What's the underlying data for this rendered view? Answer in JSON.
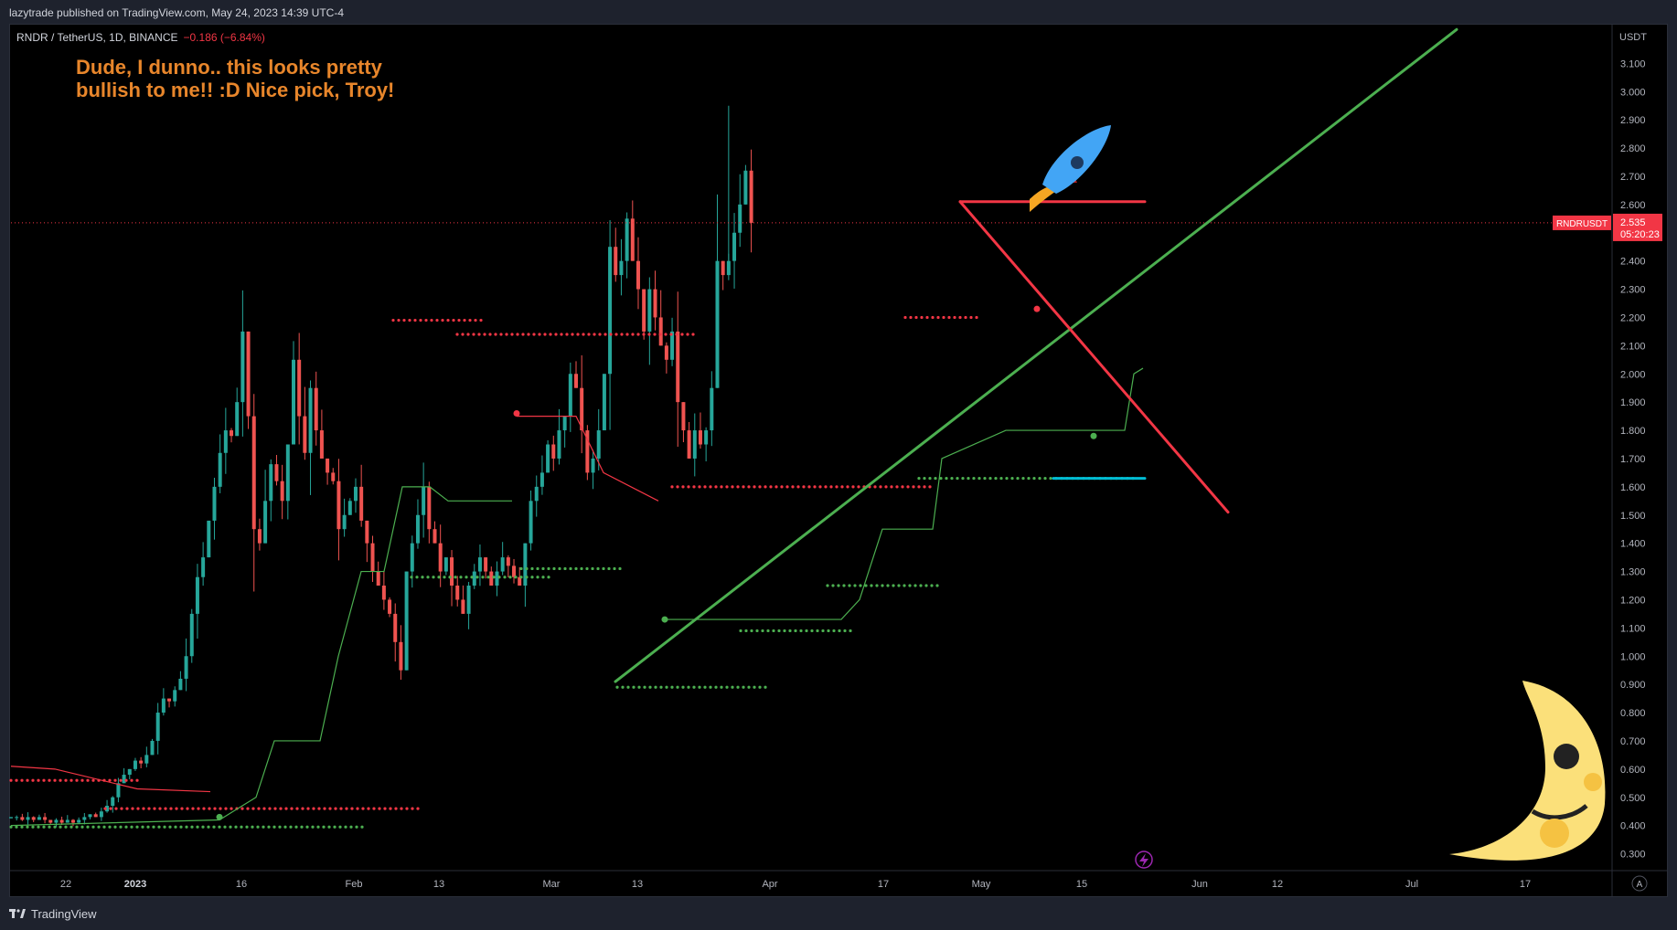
{
  "header": {
    "published_text": "lazytrade published on TradingView.com, May 24, 2023 14:39 UTC-4"
  },
  "legend": {
    "symbol_text": "RNDR / TetherUS, 1D, BINANCE",
    "change_text": "−0.186 (−6.84%)",
    "change_color": "#f23645"
  },
  "annotation": {
    "line1": "Dude, I dunno.. this looks pretty",
    "line2": "bullish to me!! :D  Nice pick, Troy!",
    "color": "#e8862b"
  },
  "price_axis": {
    "currency": "USDT",
    "ticks": [
      "3.100",
      "3.000",
      "2.900",
      "2.800",
      "2.700",
      "2.600",
      "2.400",
      "2.300",
      "2.200",
      "2.100",
      "2.000",
      "1.900",
      "1.800",
      "1.700",
      "1.600",
      "1.500",
      "1.400",
      "1.300",
      "1.200",
      "1.100",
      "1.000",
      "0.900",
      "0.800",
      "0.700",
      "0.600",
      "0.500",
      "0.400",
      "0.300"
    ],
    "tick_values": [
      3.1,
      3.0,
      2.9,
      2.8,
      2.7,
      2.6,
      2.4,
      2.3,
      2.2,
      2.1,
      2.0,
      1.9,
      1.8,
      1.7,
      1.6,
      1.5,
      1.4,
      1.3,
      1.2,
      1.1,
      1.0,
      0.9,
      0.8,
      0.7,
      0.6,
      0.5,
      0.4,
      0.3
    ],
    "last_price_label": "2.535",
    "countdown_label": "05:20:23",
    "symbol_badge": "RNDRUSDT",
    "badge_color": "#f23645"
  },
  "time_axis": {
    "labels": [
      {
        "text": "22",
        "bold": false
      },
      {
        "text": "2023",
        "bold": true
      },
      {
        "text": "16",
        "bold": false
      },
      {
        "text": "Feb",
        "bold": false
      },
      {
        "text": "13",
        "bold": false
      },
      {
        "text": "Mar",
        "bold": false
      },
      {
        "text": "13",
        "bold": false
      },
      {
        "text": "Apr",
        "bold": false
      },
      {
        "text": "17",
        "bold": false
      },
      {
        "text": "May",
        "bold": false
      },
      {
        "text": "15",
        "bold": false
      },
      {
        "text": "Jun",
        "bold": false
      },
      {
        "text": "12",
        "bold": false
      },
      {
        "text": "Jul",
        "bold": false
      },
      {
        "text": "17",
        "bold": false
      }
    ],
    "auto_button": "A"
  },
  "footer": {
    "brand": "TradingView"
  },
  "colors": {
    "up": "#26a69a",
    "down": "#ef5350",
    "trend_up": "#4caf50",
    "trend_down": "#f23645",
    "support": "#00bcd4",
    "background": "#000000"
  },
  "chart_data": {
    "type": "candlestick",
    "title": "RNDR / TetherUS, 1D, BINANCE",
    "last_price": 2.535,
    "change": -0.186,
    "change_pct": -6.84,
    "ylim": [
      0.25,
      3.2
    ],
    "close_path": [
      0.43,
      0.43,
      0.42,
      0.43,
      0.42,
      0.43,
      0.42,
      0.41,
      0.42,
      0.41,
      0.42,
      0.41,
      0.42,
      0.43,
      0.44,
      0.43,
      0.45,
      0.47,
      0.5,
      0.55,
      0.58,
      0.6,
      0.63,
      0.62,
      0.65,
      0.7,
      0.8,
      0.85,
      0.84,
      0.88,
      0.92,
      1.0,
      1.15,
      1.28,
      1.35,
      1.48,
      1.6,
      1.72,
      1.8,
      1.78,
      1.9,
      2.15,
      1.85,
      1.45,
      1.4,
      1.55,
      1.68,
      1.62,
      1.55,
      1.75,
      2.05,
      1.85,
      1.72,
      1.95,
      1.8,
      1.7,
      1.65,
      1.62,
      1.45,
      1.5,
      1.55,
      1.6,
      1.48,
      1.4,
      1.3,
      1.25,
      1.2,
      1.15,
      1.05,
      0.95,
      1.3,
      1.4,
      1.5,
      1.6,
      1.45,
      1.4,
      1.3,
      1.35,
      1.25,
      1.2,
      1.15,
      1.25,
      1.3,
      1.35,
      1.3,
      1.25,
      1.3,
      1.35,
      1.32,
      1.28,
      1.25,
      1.4,
      1.55,
      1.6,
      1.65,
      1.75,
      1.7,
      1.8,
      1.85,
      2.0,
      1.95,
      1.8,
      1.65,
      1.7,
      1.8,
      2.0,
      2.45,
      2.35,
      2.4,
      2.55,
      2.4,
      2.3,
      2.15,
      2.3,
      2.2,
      2.1,
      2.05,
      2.15,
      1.9,
      1.8,
      1.7,
      1.8,
      1.75,
      1.8,
      1.95,
      2.4,
      2.35,
      2.4,
      2.5,
      2.6,
      2.72,
      2.535
    ],
    "trendlines": [
      {
        "name": "uptrend",
        "color": "#4caf50",
        "from": {
          "bar": 69,
          "price": 0.91
        },
        "to": {
          "bar": 210,
          "price": 3.22
        }
      },
      {
        "name": "downtrend",
        "color": "#f23645",
        "from": {
          "bar": 112,
          "price": 2.61
        },
        "to": {
          "bar": 145,
          "price": 1.51
        }
      },
      {
        "name": "resistance",
        "color": "#f23645",
        "from": {
          "bar": 112,
          "price": 2.61
        },
        "to": {
          "bar": 134,
          "price": 2.61
        }
      },
      {
        "name": "support",
        "color": "#00bcd4",
        "from": {
          "bar": 124,
          "price": 1.63
        },
        "to": {
          "bar": 134,
          "price": 1.63
        }
      }
    ]
  }
}
